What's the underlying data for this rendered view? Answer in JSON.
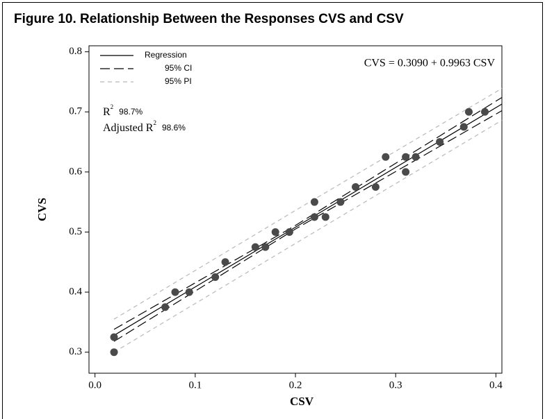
{
  "chart_data": {
    "type": "scatter",
    "title": "Figure 10. Relationship Between the Responses CVS and CSV",
    "x_label": "CSV",
    "y_label": "CVS",
    "xlim": [
      -0.006,
      0.406
    ],
    "ylim": [
      0.265,
      0.81
    ],
    "xticks": [
      {
        "value": 0,
        "label": "0.0"
      },
      0.1,
      0.2,
      0.3,
      0.4
    ],
    "yticks": [
      0.3,
      0.4,
      0.5,
      0.6,
      0.7,
      {
        "value": 0.8,
        "label": "0.8"
      }
    ],
    "color": "#4a4a4a",
    "x": [
      0.019,
      0.019,
      0.07,
      0.08,
      0.094,
      0.12,
      0.13,
      0.16,
      0.17,
      0.18,
      0.194,
      0.219,
      0.219,
      0.23,
      0.245,
      0.26,
      0.28,
      0.29,
      0.31,
      0.31,
      0.32,
      0.344,
      0.368,
      0.373,
      0.389
    ],
    "values": [
      0.3,
      0.325,
      0.375,
      0.4,
      0.4,
      0.425,
      0.45,
      0.475,
      0.475,
      0.5,
      0.5,
      0.55,
      0.525,
      0.525,
      0.55,
      0.575,
      0.575,
      0.625,
      0.625,
      0.6,
      0.625,
      0.65,
      0.675,
      0.7,
      0.7
    ],
    "fits": [
      {
        "name": "Regression",
        "style": "solid",
        "color": "#000000",
        "x": [
          0.019,
          0.406
        ],
        "values": [
          0.328,
          0.713
        ]
      },
      {
        "name": "95% CI",
        "style": "long-dash",
        "color": "#000000",
        "x": [
          0.019,
          0.2,
          0.406
        ],
        "upper": [
          0.338,
          0.511,
          0.724
        ],
        "lower": [
          0.318,
          0.505,
          0.702
        ]
      },
      {
        "name": "95% PI",
        "style": "short-dash",
        "color": "#b8b8b8",
        "x": [
          0.019,
          0.2,
          0.406
        ],
        "upper": [
          0.355,
          0.536,
          0.739
        ],
        "lower": [
          0.3,
          0.481,
          0.686
        ]
      }
    ],
    "equation": "CVS =  0.3090 + 0.9963 CSV",
    "annotations": [
      {
        "text": "R",
        "sup": "2",
        "value": "98.7%"
      },
      {
        "text": "Adjusted R",
        "sup": "2",
        "value": "98.6%"
      }
    ]
  }
}
